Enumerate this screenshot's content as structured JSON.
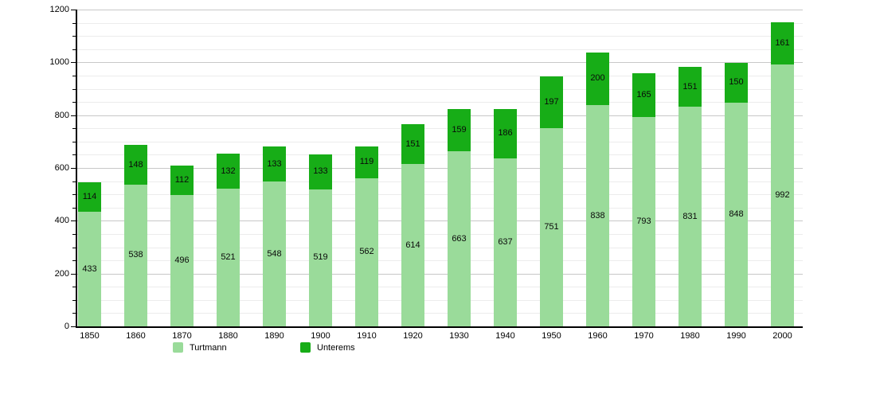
{
  "chart_data": {
    "type": "bar",
    "stacked": true,
    "title": "",
    "xlabel": "",
    "ylabel": "",
    "categories": [
      "1850",
      "1860",
      "1870",
      "1880",
      "1890",
      "1900",
      "1910",
      "1920",
      "1930",
      "1940",
      "1950",
      "1960",
      "1970",
      "1980",
      "1990",
      "2000"
    ],
    "series": [
      {
        "name": "Turtmann",
        "color": "#9adb9a",
        "values": [
          433,
          538,
          496,
          521,
          548,
          519,
          562,
          614,
          663,
          637,
          751,
          838,
          793,
          831,
          848,
          992
        ]
      },
      {
        "name": "Unterems",
        "color": "#17ad17",
        "values": [
          114,
          148,
          112,
          132,
          133,
          133,
          119,
          151,
          159,
          186,
          197,
          200,
          165,
          151,
          150,
          161
        ]
      }
    ],
    "ylim": [
      0,
      1200
    ],
    "y_tick_labels": [
      "0",
      "200",
      "400",
      "600",
      "800",
      "1000",
      "1200"
    ],
    "y_major_step": 200,
    "y_minor_step": 50,
    "grid": true,
    "legend_position": "bottom"
  },
  "legend": {
    "items": [
      {
        "label": "Turtmann",
        "color": "#9adb9a"
      },
      {
        "label": "Unterems",
        "color": "#17ad17"
      }
    ]
  },
  "colors": {
    "grid_major": "#c8c8c8",
    "grid_minor": "#ececec",
    "axis": "#000000",
    "background": "#ffffff"
  }
}
